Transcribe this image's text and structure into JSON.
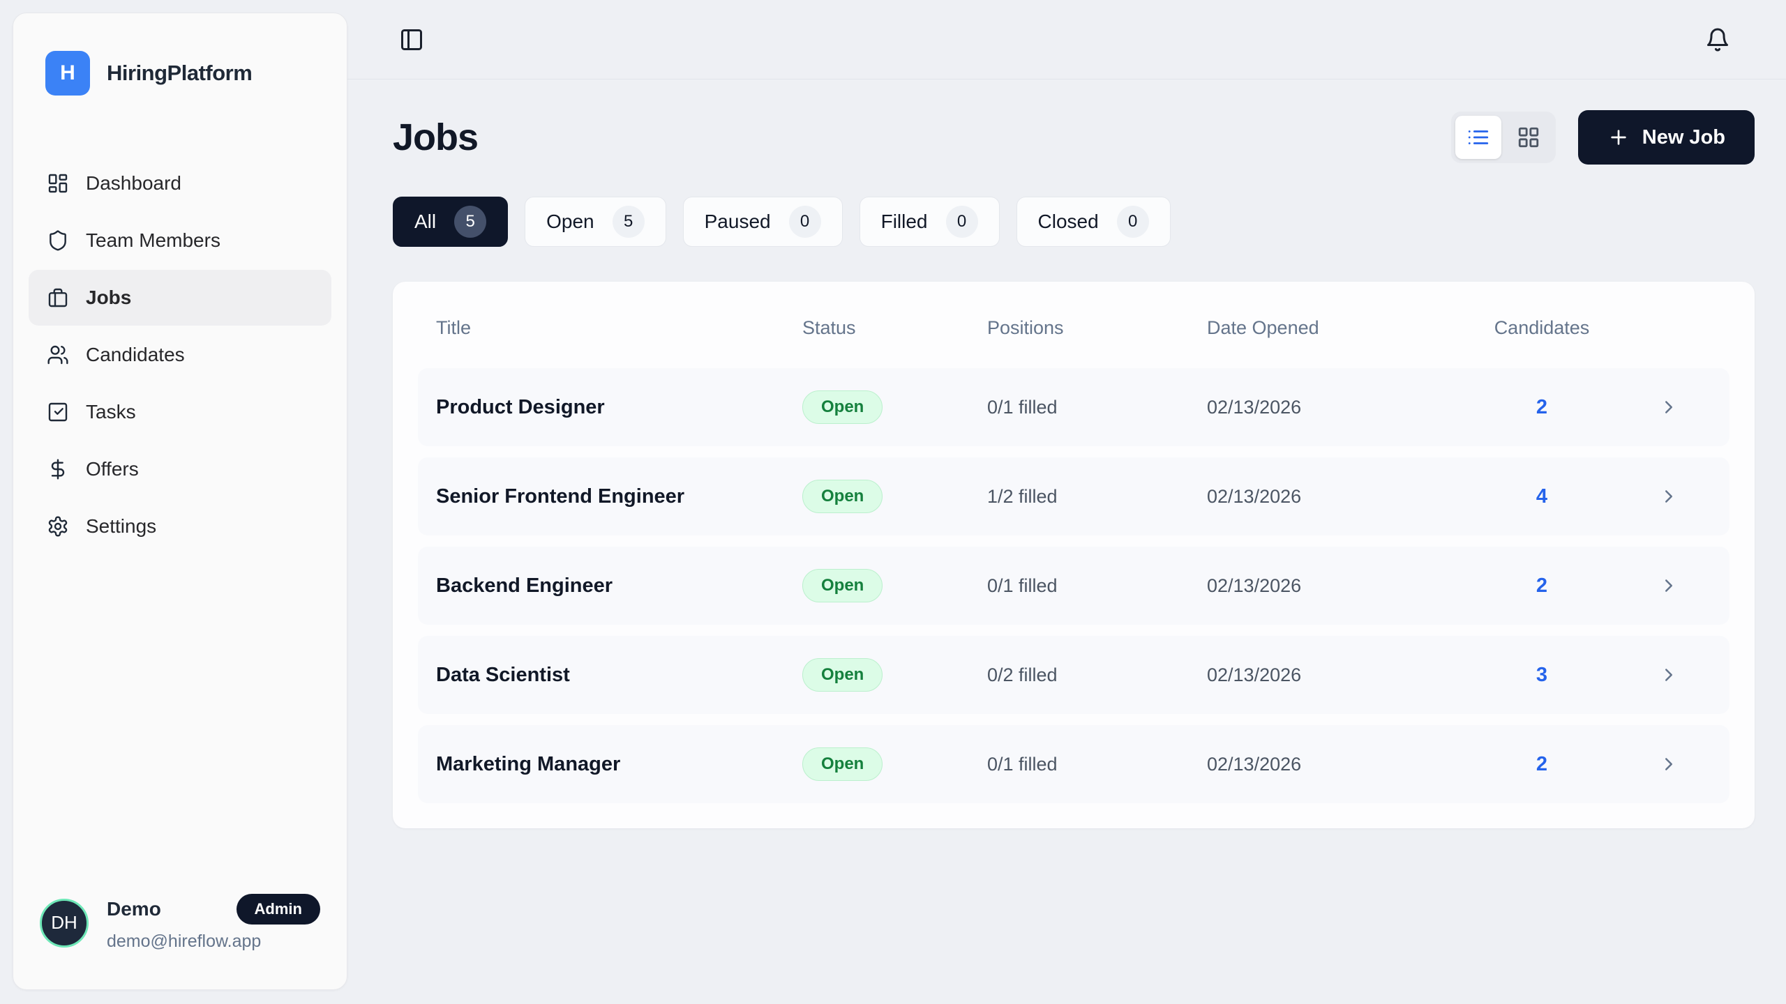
{
  "brand": {
    "logo_letter": "H",
    "name": "HiringPlatform"
  },
  "sidebar": {
    "items": [
      {
        "label": "Dashboard",
        "icon": "dashboard-icon",
        "active": false
      },
      {
        "label": "Team Members",
        "icon": "shield-icon",
        "active": false
      },
      {
        "label": "Jobs",
        "icon": "briefcase-icon",
        "active": true
      },
      {
        "label": "Candidates",
        "icon": "users-icon",
        "active": false
      },
      {
        "label": "Tasks",
        "icon": "task-check-icon",
        "active": false
      },
      {
        "label": "Offers",
        "icon": "dollar-icon",
        "active": false
      },
      {
        "label": "Settings",
        "icon": "gear-icon",
        "active": false
      }
    ],
    "user": {
      "initials": "DH",
      "name": "Demo",
      "role": "Admin",
      "email": "demo@hireflow.app"
    }
  },
  "page": {
    "title": "Jobs",
    "new_job_label": "New Job"
  },
  "filters": [
    {
      "label": "All",
      "count": "5",
      "active": true
    },
    {
      "label": "Open",
      "count": "5",
      "active": false
    },
    {
      "label": "Paused",
      "count": "0",
      "active": false
    },
    {
      "label": "Filled",
      "count": "0",
      "active": false
    },
    {
      "label": "Closed",
      "count": "0",
      "active": false
    }
  ],
  "table": {
    "columns": [
      "Title",
      "Status",
      "Positions",
      "Date Opened",
      "Candidates"
    ],
    "rows": [
      {
        "title": "Product Designer",
        "status": "Open",
        "positions": "0/1 filled",
        "date_opened": "02/13/2026",
        "candidates": "2"
      },
      {
        "title": "Senior Frontend Engineer",
        "status": "Open",
        "positions": "1/2 filled",
        "date_opened": "02/13/2026",
        "candidates": "4"
      },
      {
        "title": "Backend Engineer",
        "status": "Open",
        "positions": "0/1 filled",
        "date_opened": "02/13/2026",
        "candidates": "2"
      },
      {
        "title": "Data Scientist",
        "status": "Open",
        "positions": "0/2 filled",
        "date_opened": "02/13/2026",
        "candidates": "3"
      },
      {
        "title": "Marketing Manager",
        "status": "Open",
        "positions": "0/1 filled",
        "date_opened": "02/13/2026",
        "candidates": "2"
      }
    ]
  },
  "colors": {
    "accent_blue": "#3b82f6",
    "link_blue": "#2563eb",
    "dark_navy": "#0f172a",
    "status_open_bg": "#dcfce7",
    "status_open_text": "#15803d",
    "avatar_ring": "#6ee7b7",
    "page_bg": "#eef0f4",
    "muted_text": "#64748b"
  }
}
